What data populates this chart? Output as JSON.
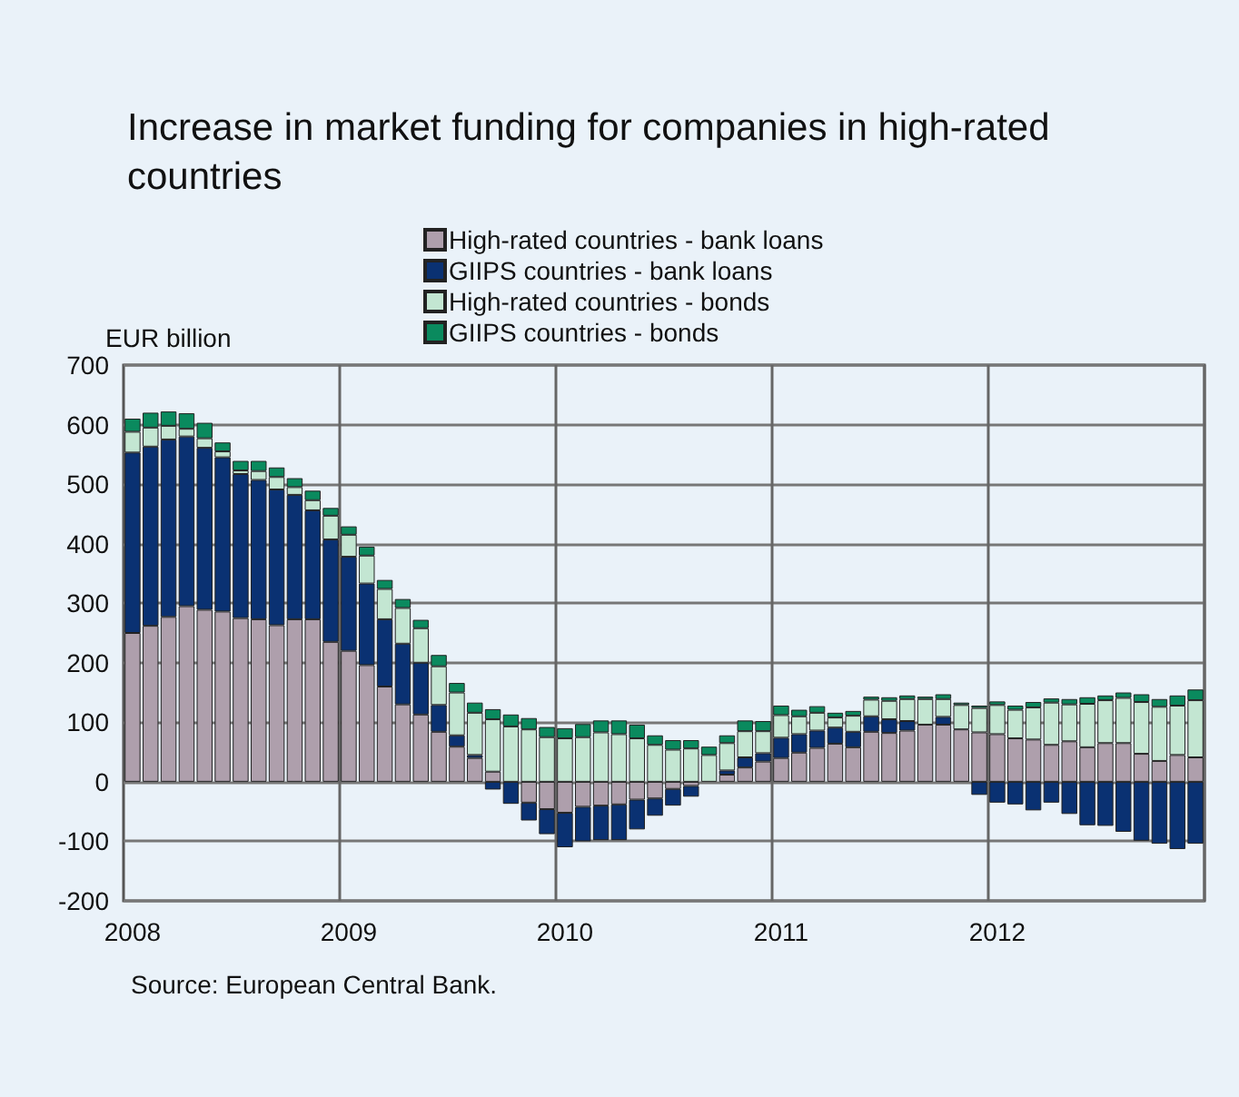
{
  "chart_data": {
    "type": "bar",
    "title": "Increase in market funding for companies in high-rated countries",
    "ylabel": "EUR billion",
    "categories": [
      "2008",
      null,
      null,
      null,
      null,
      null,
      null,
      null,
      null,
      null,
      null,
      null,
      "2009",
      null,
      null,
      null,
      null,
      null,
      null,
      null,
      null,
      null,
      null,
      null,
      "2010",
      null,
      null,
      null,
      null,
      null,
      null,
      null,
      null,
      null,
      null,
      null,
      "2011",
      null,
      null,
      null,
      null,
      null,
      null,
      null,
      null,
      null,
      null,
      null,
      "2012",
      null,
      null,
      null,
      null,
      null,
      null,
      null,
      null,
      null,
      null,
      null
    ],
    "stacked": true,
    "series": [
      {
        "name": "High-rated countries - bank loans",
        "color": "#ae9fac",
        "values": [
          250,
          262,
          277,
          295,
          289,
          286,
          275,
          273,
          263,
          273,
          273,
          235,
          220,
          196,
          160,
          130,
          113,
          84,
          59,
          40,
          17,
          0,
          -35,
          -46,
          -52,
          -42,
          -40,
          -38,
          -30,
          -28,
          -12,
          -7,
          null,
          12,
          24,
          34,
          40,
          49,
          57,
          64,
          58,
          84,
          82,
          86,
          96,
          96,
          88,
          83,
          80,
          73,
          71,
          62,
          68,
          58,
          65,
          65,
          47,
          35,
          45,
          41
        ]
      },
      {
        "name": "GIIPS countries - bank loans",
        "color": "#0a3172",
        "values": [
          303,
          301,
          298,
          285,
          272,
          259,
          242,
          234,
          228,
          209,
          183,
          172,
          158,
          137,
          113,
          102,
          87,
          45,
          19,
          5,
          -13,
          -37,
          -30,
          -42,
          -58,
          -58,
          -58,
          -60,
          -50,
          -29,
          -28,
          -18,
          0,
          7,
          17,
          14,
          34,
          31,
          29,
          27,
          26,
          26,
          23,
          16,
          0,
          13,
          0,
          -22,
          -35,
          -38,
          -48,
          -35,
          -54,
          -73,
          -74,
          -84,
          -99,
          -104,
          -113,
          -104
        ]
      },
      {
        "name": "High-rated countries - bonds",
        "color": "#c3e6d2",
        "values": [
          35,
          32,
          23,
          13,
          16,
          10,
          6,
          15,
          21,
          13,
          17,
          40,
          37,
          47,
          51,
          60,
          58,
          65,
          72,
          71,
          88,
          93,
          88,
          75,
          73,
          75,
          83,
          80,
          73,
          62,
          54,
          56,
          45,
          46,
          44,
          37,
          38,
          30,
          30,
          17,
          27,
          28,
          31,
          37,
          43,
          30,
          41,
          41,
          49,
          48,
          54,
          71,
          62,
          73,
          72,
          76,
          87,
          91,
          83,
          96
        ]
      },
      {
        "name": "GIIPS countries - bonds",
        "color": "#0a8a5e",
        "values": [
          22,
          25,
          24,
          26,
          26,
          15,
          16,
          17,
          16,
          15,
          16,
          13,
          14,
          15,
          15,
          15,
          14,
          19,
          16,
          17,
          17,
          20,
          19,
          17,
          17,
          22,
          20,
          23,
          23,
          16,
          16,
          14,
          14,
          13,
          18,
          17,
          16,
          11,
          11,
          8,
          8,
          5,
          6,
          6,
          4,
          8,
          4,
          4,
          6,
          7,
          9,
          7,
          9,
          11,
          8,
          9,
          13,
          13,
          17,
          18
        ]
      }
    ],
    "ylim": [
      -200,
      700
    ],
    "yticks": [
      -200,
      -100,
      0,
      100,
      200,
      300,
      400,
      500,
      600,
      700
    ],
    "grid": true,
    "legend": "top",
    "annotations": [
      "Source: European Central Bank."
    ]
  }
}
